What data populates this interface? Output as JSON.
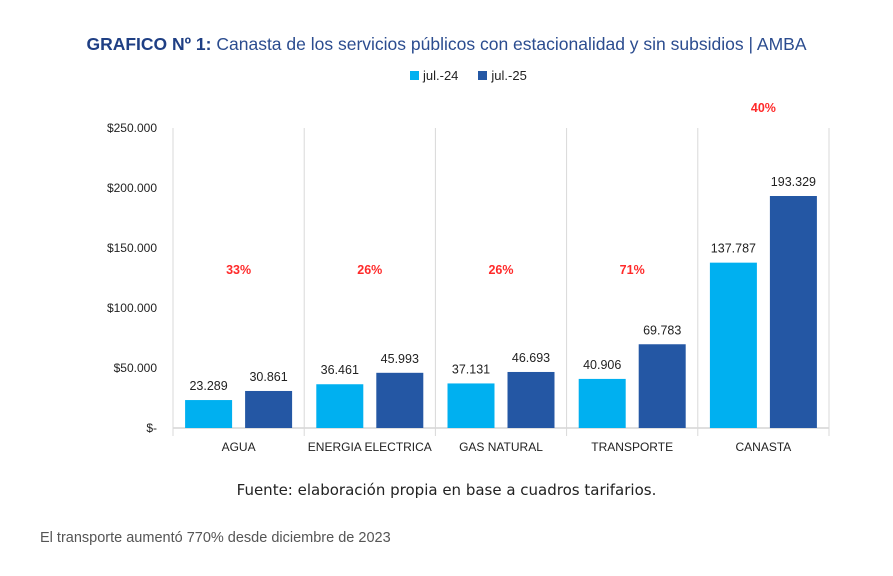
{
  "title_bold": "GRAFICO Nº 1:",
  "title_rest": " Canasta de los servicios públicos con estacionalidad y sin subsidios | AMBA",
  "source": "Fuente: elaboración propia en base a cuadros tarifarios.",
  "caption": "El transporte aumentó 770% desde diciembre de 2023",
  "colors": {
    "jul24": "#00b0f0",
    "jul25": "#2457a4",
    "pct": "#ff2a2a"
  },
  "chart_data": {
    "type": "bar",
    "categories": [
      "AGUA",
      "ENERGIA ELECTRICA",
      "GAS NATURAL",
      "TRANSPORTE",
      "CANASTA"
    ],
    "series": [
      {
        "name": "jul.-24",
        "values": [
          23289,
          36461,
          37131,
          40906,
          137787
        ],
        "labels": [
          "23.289",
          "36.461",
          "37.131",
          "40.906",
          "137.787"
        ]
      },
      {
        "name": "jul.-25",
        "values": [
          30861,
          45993,
          46693,
          69783,
          193329
        ],
        "labels": [
          "30.861",
          "45.993",
          "46.693",
          "69.783",
          "193.329"
        ]
      }
    ],
    "changes": [
      "33%",
      "26%",
      "26%",
      "71%",
      "40%"
    ],
    "ylim": [
      0,
      250000
    ],
    "yticks": [
      {
        "value": 0,
        "label": "$-"
      },
      {
        "value": 50000,
        "label": "$50.000"
      },
      {
        "value": 100000,
        "label": "$100.000"
      },
      {
        "value": 150000,
        "label": "$150.000"
      },
      {
        "value": 200000,
        "label": "$200.000"
      },
      {
        "value": 250000,
        "label": "$250.000"
      }
    ],
    "xlabel": "",
    "ylabel": "",
    "grid": false,
    "category_separators": true,
    "legend_position": "top-center"
  }
}
